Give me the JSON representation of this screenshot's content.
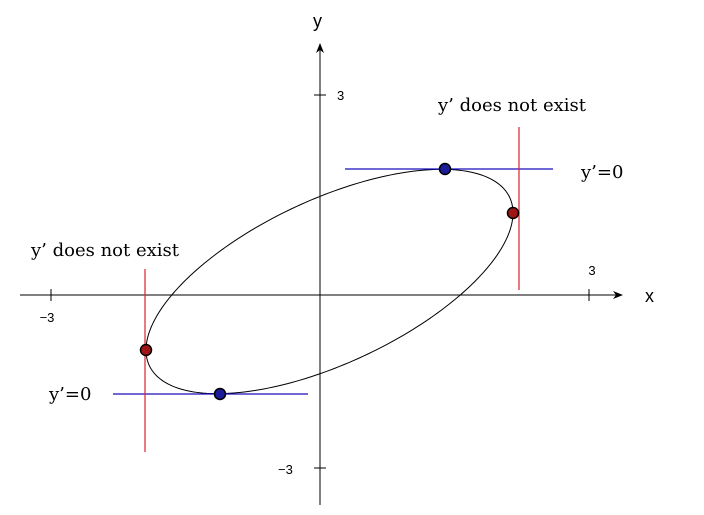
{
  "axes": {
    "x_label": "x",
    "y_label": "y",
    "ticks": {
      "x_pos": "3",
      "x_neg": "−3",
      "y_pos": "3",
      "y_neg": "−3"
    },
    "range": {
      "x": [
        -3,
        3
      ],
      "y": [
        -3,
        3
      ]
    }
  },
  "annotations": {
    "horizontal_top": "y’=0",
    "horizontal_bottom": "y’=0",
    "vertical_right": "y’ does not exist",
    "vertical_left": "y’ does not exist"
  },
  "colors": {
    "axis": "#000000",
    "curve": "#000000",
    "horizontal_tangent": "#1a0fbf",
    "vertical_tangent": "#e0202e",
    "blue_point": "#1c1c9a",
    "red_point": "#a01616"
  }
}
